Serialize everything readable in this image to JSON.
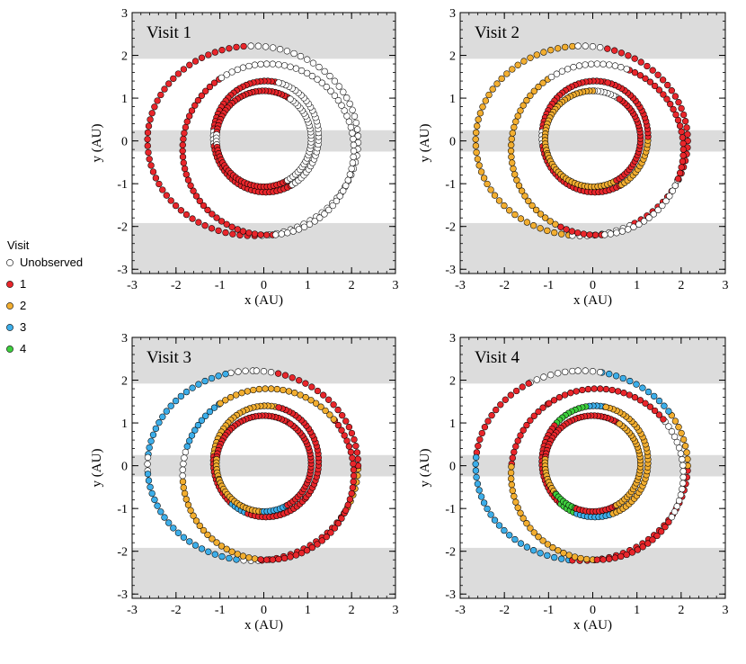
{
  "figure": {
    "legend": {
      "title": "Visit",
      "entries": [
        {
          "label": "Unobserved",
          "color": "#ffffff"
        },
        {
          "label": "1",
          "color": "#e8262b"
        },
        {
          "label": "2",
          "color": "#f2ae30"
        },
        {
          "label": "3",
          "color": "#3daee9"
        },
        {
          "label": "4",
          "color": "#3ecf3e"
        }
      ]
    }
  },
  "chart_data": [
    {
      "type": "scatter",
      "title": "Visit 1",
      "xlabel": "x (AU)",
      "ylabel": "y (AU)",
      "xlim": [
        -3,
        3
      ],
      "ylim": [
        -3.1,
        3
      ],
      "xticks": [
        "-3",
        "-2",
        "-1",
        "0",
        "1",
        "2",
        "3"
      ],
      "yticks": [
        "-3",
        "-2",
        "-1",
        "0",
        "1",
        "2",
        "3"
      ],
      "shaded_bands_y": [
        [
          1.92,
          3.0
        ],
        [
          -0.25,
          0.25
        ],
        [
          -3.1,
          -1.92
        ]
      ],
      "orbits": [
        {
          "name": "outer",
          "center": [
            -0.25,
            0.0
          ],
          "radius_x": 2.4,
          "radius_y": 2.22,
          "segments": [
            {
              "from_deg": 95,
              "to_deg": 275,
              "visit": 1
            },
            {
              "from_deg": 275,
              "to_deg": 455,
              "visit": 0
            }
          ]
        },
        {
          "name": "second",
          "center": [
            0.1,
            -0.2
          ],
          "radius_x": 1.95,
          "radius_y": 2.0,
          "segments": [
            {
              "from_deg": 125,
              "to_deg": 275,
              "visit": 1
            },
            {
              "from_deg": 275,
              "to_deg": 485,
              "visit": 0
            }
          ]
        },
        {
          "name": "third",
          "center": [
            0.05,
            0.1
          ],
          "radius_x": 1.2,
          "radius_y": 1.3,
          "segments": [
            {
              "from_deg": 80,
              "to_deg": 175,
              "visit": 1
            },
            {
              "from_deg": 175,
              "to_deg": 190,
              "visit": 0
            },
            {
              "from_deg": 190,
              "to_deg": 300,
              "visit": 1
            },
            {
              "from_deg": 300,
              "to_deg": 440,
              "visit": 0
            }
          ]
        },
        {
          "name": "inner",
          "center": [
            0.0,
            0.05
          ],
          "radius_x": 1.08,
          "radius_y": 1.12,
          "segments": [
            {
              "from_deg": 60,
              "to_deg": 175,
              "visit": 1
            },
            {
              "from_deg": 175,
              "to_deg": 190,
              "visit": 0
            },
            {
              "from_deg": 190,
              "to_deg": 300,
              "visit": 1
            },
            {
              "from_deg": 300,
              "to_deg": 420,
              "visit": 0
            }
          ]
        }
      ]
    },
    {
      "type": "scatter",
      "title": "Visit 2",
      "xlabel": "x (AU)",
      "ylabel": "y (AU)",
      "xlim": [
        -3,
        3
      ],
      "ylim": [
        -3.1,
        3
      ],
      "xticks": [
        "-3",
        "-2",
        "-1",
        "0",
        "1",
        "2",
        "3"
      ],
      "yticks": [
        "-3",
        "-2",
        "-1",
        "0",
        "1",
        "2",
        "3"
      ],
      "shaded_bands_y": [
        [
          1.92,
          3.0
        ],
        [
          -0.25,
          0.25
        ],
        [
          -3.1,
          -1.92
        ]
      ],
      "orbits": [
        {
          "name": "outer",
          "center": [
            -0.25,
            0.0
          ],
          "radius_x": 2.4,
          "radius_y": 2.22,
          "segments": [
            {
              "from_deg": 95,
              "to_deg": 265,
              "visit": 2
            },
            {
              "from_deg": 265,
              "to_deg": 300,
              "visit": 0
            },
            {
              "from_deg": 300,
              "to_deg": 440,
              "visit": 1
            },
            {
              "from_deg": 440,
              "to_deg": 455,
              "visit": 0
            }
          ]
        },
        {
          "name": "second",
          "center": [
            0.1,
            -0.2
          ],
          "radius_x": 1.95,
          "radius_y": 2.0,
          "segments": [
            {
              "from_deg": 125,
              "to_deg": 245,
              "visit": 2
            },
            {
              "from_deg": 245,
              "to_deg": 275,
              "visit": 1
            },
            {
              "from_deg": 275,
              "to_deg": 340,
              "visit": 0
            },
            {
              "from_deg": 340,
              "to_deg": 430,
              "visit": 1
            },
            {
              "from_deg": 430,
              "to_deg": 485,
              "visit": 0
            }
          ]
        },
        {
          "name": "third",
          "center": [
            0.05,
            0.1
          ],
          "radius_x": 1.2,
          "radius_y": 1.3,
          "segments": [
            {
              "from_deg": 80,
              "to_deg": 175,
              "visit": 1
            },
            {
              "from_deg": 175,
              "to_deg": 190,
              "visit": 0
            },
            {
              "from_deg": 190,
              "to_deg": 300,
              "visit": 1
            },
            {
              "from_deg": 300,
              "to_deg": 360,
              "visit": 2
            },
            {
              "from_deg": 360,
              "to_deg": 440,
              "visit": 1
            }
          ]
        },
        {
          "name": "inner",
          "center": [
            0.0,
            0.05
          ],
          "radius_x": 1.08,
          "radius_y": 1.12,
          "segments": [
            {
              "from_deg": 60,
              "to_deg": 90,
              "visit": 0
            },
            {
              "from_deg": 90,
              "to_deg": 200,
              "visit": 2
            },
            {
              "from_deg": 200,
              "to_deg": 300,
              "visit": 2
            },
            {
              "from_deg": 300,
              "to_deg": 420,
              "visit": 1
            }
          ]
        }
      ]
    },
    {
      "type": "scatter",
      "title": "Visit 3",
      "xlabel": "x (AU)",
      "ylabel": "y (AU)",
      "xlim": [
        -3,
        3
      ],
      "ylim": [
        -3.1,
        3
      ],
      "xticks": [
        "-3",
        "-2",
        "-1",
        "0",
        "1",
        "2",
        "3"
      ],
      "yticks": [
        "-3",
        "-2",
        "-1",
        "0",
        "1",
        "2",
        "3"
      ],
      "shaded_bands_y": [
        [
          1.92,
          3.0
        ],
        [
          -0.25,
          0.25
        ],
        [
          -3.1,
          -1.92
        ]
      ],
      "orbits": [
        {
          "name": "outer",
          "center": [
            -0.25,
            0.0
          ],
          "radius_x": 2.4,
          "radius_y": 2.22,
          "segments": [
            {
              "from_deg": 90,
              "to_deg": 105,
              "visit": 0
            },
            {
              "from_deg": 105,
              "to_deg": 175,
              "visit": 3
            },
            {
              "from_deg": 175,
              "to_deg": 185,
              "visit": 0
            },
            {
              "from_deg": 185,
              "to_deg": 265,
              "visit": 3
            },
            {
              "from_deg": 265,
              "to_deg": 275,
              "visit": 0
            },
            {
              "from_deg": 275,
              "to_deg": 330,
              "visit": 1
            },
            {
              "from_deg": 330,
              "to_deg": 360,
              "visit": 2
            },
            {
              "from_deg": 360,
              "to_deg": 440,
              "visit": 1
            },
            {
              "from_deg": 440,
              "to_deg": 450,
              "visit": 0
            }
          ]
        },
        {
          "name": "second",
          "center": [
            0.1,
            -0.2
          ],
          "radius_x": 1.95,
          "radius_y": 2.0,
          "segments": [
            {
              "from_deg": 125,
              "to_deg": 165,
              "visit": 3
            },
            {
              "from_deg": 165,
              "to_deg": 185,
              "visit": 0
            },
            {
              "from_deg": 185,
              "to_deg": 265,
              "visit": 2
            },
            {
              "from_deg": 265,
              "to_deg": 335,
              "visit": 1
            },
            {
              "from_deg": 335,
              "to_deg": 400,
              "visit": 1
            },
            {
              "from_deg": 400,
              "to_deg": 485,
              "visit": 2
            }
          ]
        },
        {
          "name": "third",
          "center": [
            0.05,
            0.1
          ],
          "radius_x": 1.2,
          "radius_y": 1.3,
          "segments": [
            {
              "from_deg": 80,
              "to_deg": 175,
              "visit": 2
            },
            {
              "from_deg": 175,
              "to_deg": 230,
              "visit": 1
            },
            {
              "from_deg": 230,
              "to_deg": 250,
              "visit": 3
            },
            {
              "from_deg": 250,
              "to_deg": 320,
              "visit": 1
            },
            {
              "from_deg": 320,
              "to_deg": 440,
              "visit": 1
            }
          ]
        },
        {
          "name": "inner",
          "center": [
            0.0,
            0.05
          ],
          "radius_x": 1.08,
          "radius_y": 1.12,
          "segments": [
            {
              "from_deg": 60,
              "to_deg": 175,
              "visit": 1
            },
            {
              "from_deg": 175,
              "to_deg": 200,
              "visit": 2
            },
            {
              "from_deg": 200,
              "to_deg": 270,
              "visit": 2
            },
            {
              "from_deg": 270,
              "to_deg": 300,
              "visit": 3
            },
            {
              "from_deg": 300,
              "to_deg": 420,
              "visit": 1
            }
          ]
        }
      ]
    },
    {
      "type": "scatter",
      "title": "Visit 4",
      "xlabel": "x (AU)",
      "ylabel": "y (AU)",
      "xlim": [
        -3,
        3
      ],
      "ylim": [
        -3.1,
        3
      ],
      "xticks": [
        "-3",
        "-2",
        "-1",
        "0",
        "1",
        "2",
        "3"
      ],
      "yticks": [
        "-3",
        "-2",
        "-1",
        "0",
        "1",
        "2",
        "3"
      ],
      "shaded_bands_y": [
        [
          1.92,
          3.0
        ],
        [
          -0.25,
          0.25
        ],
        [
          -3.1,
          -1.92
        ]
      ],
      "orbits": [
        {
          "name": "outer",
          "center": [
            -0.25,
            0.0
          ],
          "radius_x": 2.4,
          "radius_y": 2.22,
          "segments": [
            {
              "from_deg": 95,
              "to_deg": 120,
              "visit": 0
            },
            {
              "from_deg": 120,
              "to_deg": 175,
              "visit": 1
            },
            {
              "from_deg": 175,
              "to_deg": 265,
              "visit": 3
            },
            {
              "from_deg": 265,
              "to_deg": 360,
              "visit": 1
            },
            {
              "from_deg": 360,
              "to_deg": 395,
              "visit": 2
            },
            {
              "from_deg": 395,
              "to_deg": 440,
              "visit": 3
            },
            {
              "from_deg": 440,
              "to_deg": 455,
              "visit": 0
            }
          ]
        },
        {
          "name": "second",
          "center": [
            0.1,
            -0.2
          ],
          "radius_x": 1.95,
          "radius_y": 2.0,
          "segments": [
            {
              "from_deg": 125,
              "to_deg": 175,
              "visit": 1
            },
            {
              "from_deg": 175,
              "to_deg": 270,
              "visit": 2
            },
            {
              "from_deg": 270,
              "to_deg": 330,
              "visit": 1
            },
            {
              "from_deg": 330,
              "to_deg": 400,
              "visit": 0
            },
            {
              "from_deg": 400,
              "to_deg": 485,
              "visit": 1
            }
          ]
        },
        {
          "name": "third",
          "center": [
            0.05,
            0.1
          ],
          "radius_x": 1.2,
          "radius_y": 1.3,
          "segments": [
            {
              "from_deg": 80,
              "to_deg": 100,
              "visit": 3
            },
            {
              "from_deg": 100,
              "to_deg": 140,
              "visit": 4
            },
            {
              "from_deg": 140,
              "to_deg": 230,
              "visit": 1
            },
            {
              "from_deg": 230,
              "to_deg": 250,
              "visit": 4
            },
            {
              "from_deg": 250,
              "to_deg": 290,
              "visit": 3
            },
            {
              "from_deg": 290,
              "to_deg": 440,
              "visit": 2
            }
          ]
        },
        {
          "name": "inner",
          "center": [
            0.0,
            0.05
          ],
          "radius_x": 1.08,
          "radius_y": 1.12,
          "segments": [
            {
              "from_deg": 60,
              "to_deg": 175,
              "visit": 1
            },
            {
              "from_deg": 175,
              "to_deg": 220,
              "visit": 2
            },
            {
              "from_deg": 220,
              "to_deg": 250,
              "visit": 4
            },
            {
              "from_deg": 250,
              "to_deg": 300,
              "visit": 1
            },
            {
              "from_deg": 300,
              "to_deg": 420,
              "visit": 2
            }
          ]
        }
      ]
    }
  ]
}
